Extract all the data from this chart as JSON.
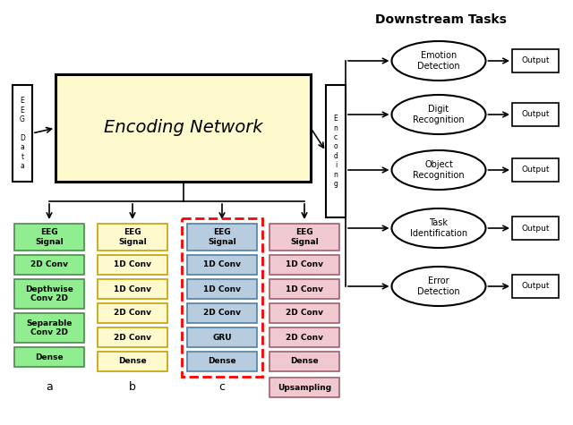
{
  "title": "Downstream Tasks",
  "encoding_network_label": "Encoding Network",
  "colors": {
    "green_fill": "#90EE90",
    "green_border": "#4A8B4A",
    "yellow_fill": "#FFFACD",
    "yellow_border": "#C8A000",
    "blue_fill": "#B8CCE0",
    "blue_border": "#5080A0",
    "pink_fill": "#F0C8D0",
    "pink_border": "#A06070",
    "enc_net_fill": "#FFFACD",
    "enc_net_border": "#000000",
    "white_fill": "#FFFFFF",
    "white_border": "#000000",
    "red_dashed": "#FF0000"
  },
  "col_a_blocks": [
    "EEG\nSignal",
    "2D Conv",
    "Depthwise\nConv 2D",
    "Separable\nConv 2D",
    "Dense"
  ],
  "col_a_heights": [
    30,
    22,
    33,
    33,
    22
  ],
  "col_b_blocks": [
    "EEG\nSignal",
    "1D Conv",
    "1D Conv",
    "2D Conv",
    "2D Conv",
    "Dense"
  ],
  "col_b_heights": [
    30,
    22,
    22,
    22,
    22,
    22
  ],
  "col_c_blocks": [
    "EEG\nSignal",
    "1D Conv",
    "1D Conv",
    "2D Conv",
    "GRU",
    "Dense"
  ],
  "col_c_heights": [
    30,
    22,
    22,
    22,
    22,
    22
  ],
  "col_d_blocks": [
    "EEG\nSignal",
    "1D Conv",
    "1D Conv",
    "2D Conv",
    "2D Conv",
    "Dense"
  ],
  "col_d_heights": [
    30,
    22,
    22,
    22,
    22,
    22
  ],
  "downstream_tasks": [
    "Emotion\nDetection",
    "Digit\nRecognition",
    "Object\nRecognition",
    "Task\nIdentification",
    "Error\nDetection"
  ]
}
